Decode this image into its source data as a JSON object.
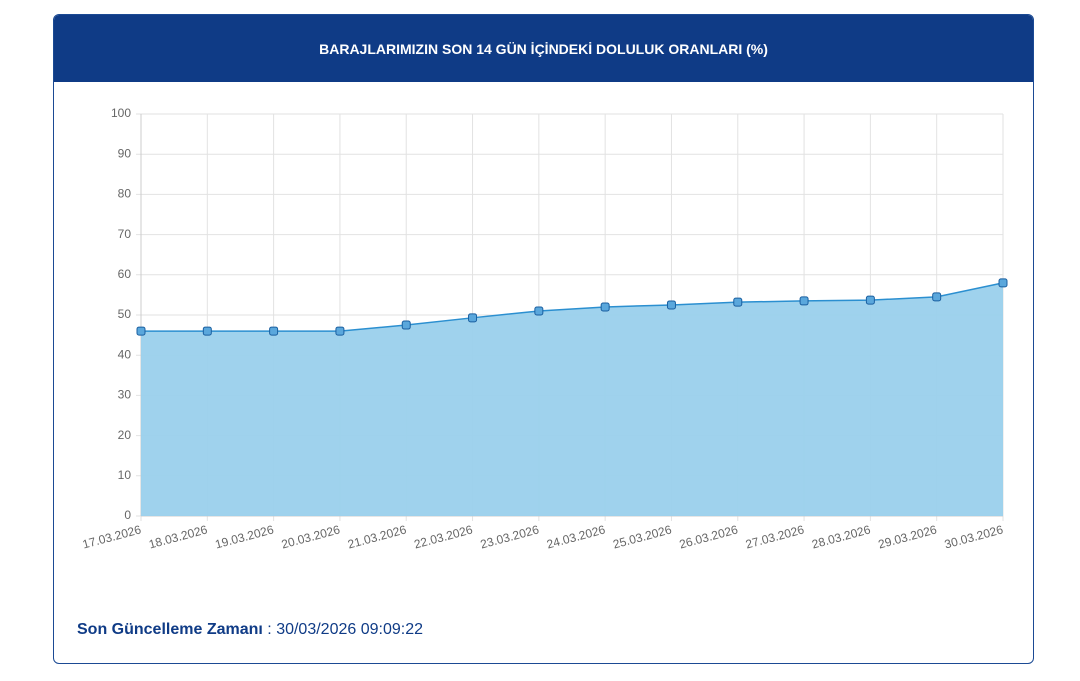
{
  "chart_data": {
    "type": "area",
    "title": "BARAJLARIMIZIN SON 14 GÜN İÇİNDEKİ DOLULUK ORANLARI (%)",
    "categories": [
      "17.03.2026",
      "18.03.2026",
      "19.03.2026",
      "20.03.2026",
      "21.03.2026",
      "22.03.2026",
      "23.03.2026",
      "24.03.2026",
      "25.03.2026",
      "26.03.2026",
      "27.03.2026",
      "28.03.2026",
      "29.03.2026",
      "30.03.2026"
    ],
    "values": [
      46,
      46,
      46,
      46,
      47.5,
      49.3,
      51,
      52,
      52.5,
      53.2,
      53.5,
      53.7,
      54.5,
      58
    ],
    "color": "#2b8fd0",
    "fill": "#9ad0ec",
    "ylim": [
      0,
      100
    ],
    "yticks": [
      0,
      10,
      20,
      30,
      40,
      50,
      60,
      70,
      80,
      90,
      100
    ],
    "grid": true
  },
  "footer": {
    "label": "Son Güncelleme Zamanı",
    "separator": ":",
    "value": "30/03/2026 09:09:22"
  }
}
